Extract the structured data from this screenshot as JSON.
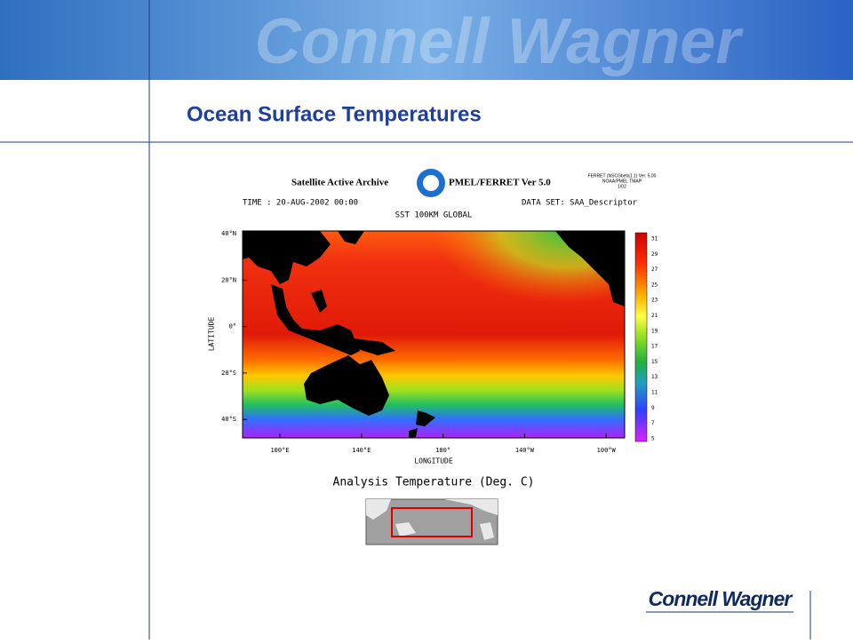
{
  "header": {
    "watermark": "Connell Wagner"
  },
  "title": "Ocean Surface Temperatures",
  "figure": {
    "archive": "Satellite Active Archive",
    "version": "PMEL/FERRET Ver 5.0",
    "ferret_note": [
      "FERRET (NSCGbeta1.1) Ver. 5.00",
      "NOAA/PMEL TMAP",
      "1/02"
    ],
    "time": "TIME : 20-AUG-2002 00:00",
    "dataset": "DATA SET: SAA_Descriptor",
    "subtitle": "SST 100KM GLOBAL",
    "lat_labels": [
      "40°N",
      "20°N",
      "0°",
      "20°S",
      "40°S"
    ],
    "lat_axis": "LATITUDE",
    "lon_labels": [
      "100°E",
      "140°E",
      "180°",
      "140°W",
      "100°W"
    ],
    "lon_axis": "LONGITUDE",
    "colorbar_labels": [
      "31",
      "29",
      "27",
      "25",
      "23",
      "21",
      "19",
      "17",
      "15",
      "13",
      "11",
      "9",
      "7",
      "5"
    ],
    "caption": "Analysis Temperature (Deg. C)"
  },
  "footer": {
    "logo": "Connell Wagner"
  }
}
